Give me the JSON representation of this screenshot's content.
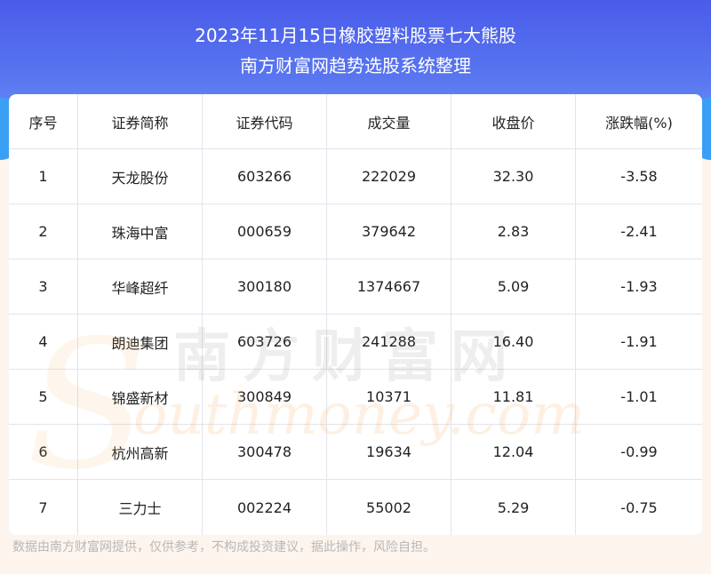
{
  "title": {
    "line1": "2023年11月15日橡胶塑料股票七大熊股",
    "line2": "南方财富网趋势选股系统整理"
  },
  "table": {
    "headers": [
      "序号",
      "证券简称",
      "证券代码",
      "成交量",
      "收盘价",
      "涨跌幅(%)"
    ],
    "rows": [
      [
        "1",
        "天龙股份",
        "603266",
        "222029",
        "32.30",
        "-3.58"
      ],
      [
        "2",
        "珠海中富",
        "000659",
        "379642",
        "2.83",
        "-2.41"
      ],
      [
        "3",
        "华峰超纤",
        "300180",
        "1374667",
        "5.09",
        "-1.93"
      ],
      [
        "4",
        "朗迪集团",
        "603726",
        "241288",
        "16.40",
        "-1.91"
      ],
      [
        "5",
        "锦盛新材",
        "300849",
        "10371",
        "11.81",
        "-1.01"
      ],
      [
        "6",
        "杭州高新",
        "300478",
        "19634",
        "12.04",
        "-0.99"
      ],
      [
        "7",
        "三力士",
        "002224",
        "55002",
        "5.29",
        "-0.75"
      ]
    ]
  },
  "watermark": {
    "cn": "南方财富网",
    "en": "outhmoney.com",
    "s": "S"
  },
  "footer": "数据由南方财富网提供，仅供参考，不构成投资建议，据此操作，风险自担。"
}
